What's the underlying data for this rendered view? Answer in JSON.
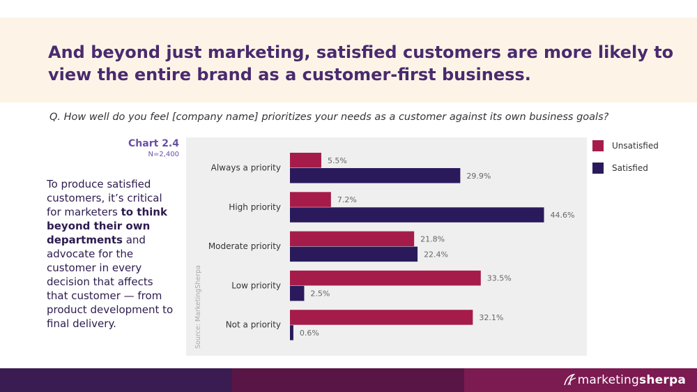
{
  "header": {
    "title": "And beyond just marketing, satisfied customers are more likely to view the entire brand as a customer-first business."
  },
  "question": "Q. How well do you feel [company name] prioritizes your needs as a customer against its own business goals?",
  "chart_label": {
    "id": "Chart 2.4",
    "n": "N=2,400"
  },
  "body": {
    "part1": "To produce satisfied customers, it’s critical for marketers ",
    "bold": "to think beyond their own departments",
    "part2": " and advocate for the customer in every decision that affects that customer — from product development to final delivery."
  },
  "source": "Source: MarketingSherpa",
  "legend": {
    "items": [
      {
        "label": "Unsatisfied"
      },
      {
        "label": "Satisfied"
      }
    ]
  },
  "colors": {
    "unsatisfied": "#a51c4a",
    "satisfied": "#2a1a5c",
    "plot_bg": "#efefef",
    "header_bg": "#fdf4e7",
    "title": "#4a2a6e",
    "footer": [
      "#3a1c52",
      "#5a1547",
      "#7c1a52"
    ]
  },
  "chart_data": {
    "type": "bar",
    "orientation": "horizontal",
    "categories": [
      "Always a priority",
      "High priority",
      "Moderate priority",
      "Low priority",
      "Not a priority"
    ],
    "series": [
      {
        "name": "Unsatisfied",
        "values": [
          5.5,
          7.2,
          21.8,
          33.5,
          32.1
        ]
      },
      {
        "name": "Satisfied",
        "values": [
          29.9,
          44.6,
          22.4,
          2.5,
          0.6
        ]
      }
    ],
    "unit": "%",
    "xlim": [
      0,
      50
    ],
    "grid": false,
    "legend": "right"
  },
  "brand": {
    "part1": "marketing",
    "part2": "sherpa",
    "logo_icon": "sherpa-swirl-icon"
  }
}
